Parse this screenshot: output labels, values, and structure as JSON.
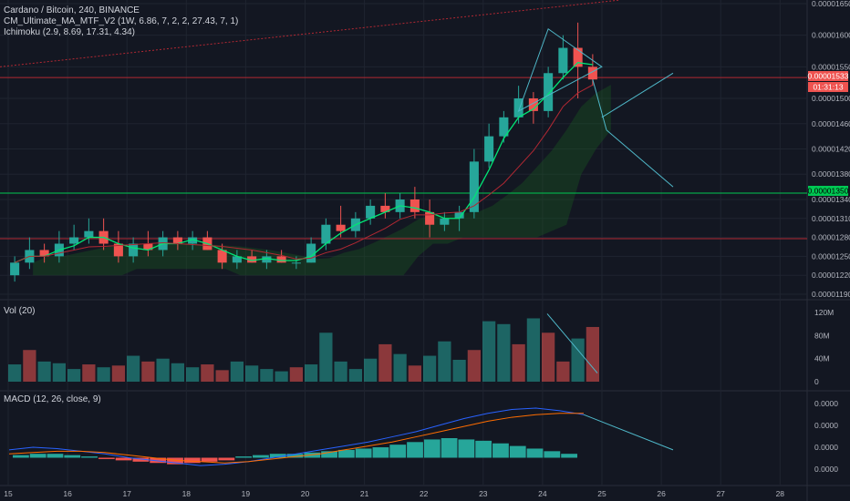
{
  "legend": {
    "main": "Cardano / Bitcoin, 240, BINANCE",
    "ma": "CM_Ultimate_MA_MTF_V2 (1W, 6.86, 7, 2, 2, 27.43, 7, 1)",
    "ichimoku": "Ichimoku (2.9, 8.69, 17.31, 4.34)",
    "vol": "Vol (20)",
    "macd": "MACD (12, 26, close, 9)"
  },
  "price_tag": {
    "price": "0.00001533",
    "countdown": "01:31:13"
  },
  "level_tag": "0.00001350",
  "colors": {
    "bg": "#131722",
    "up": "#26a69a",
    "down": "#ef5350",
    "grid": "#1f2430",
    "ma": "#00e676",
    "level": "#00c853",
    "resistance": "#b22833",
    "cloud": "#1b5e20",
    "drawing": "#4fb8c9",
    "macd": "#2962ff",
    "signal": "#ff6d00"
  },
  "chart_data": [
    {
      "type": "candlestick",
      "title": "Cardano / Bitcoin, 240, BINANCE",
      "x_ticks": [
        "15",
        "16",
        "17",
        "18",
        "19",
        "20",
        "21",
        "22",
        "23",
        "24",
        "25",
        "26",
        "27",
        "28"
      ],
      "y_ticks": [
        "0.00001650",
        "0.00001600",
        "0.00001550",
        "0.00001500",
        "0.00001460",
        "0.00001420",
        "0.00001380",
        "0.00001340",
        "0.00001310",
        "0.00001280",
        "0.00001250",
        "0.00001220",
        "0.00001190"
      ],
      "ylim": [
        1.19e-05,
        1.65e-05
      ],
      "horizontal_levels": [
        1.533e-05,
        1.35e-05,
        1.278e-05
      ],
      "candles": [
        [
          1.22e-05,
          1.25e-05,
          1.21e-05,
          1.24e-05
        ],
        [
          1.24e-05,
          1.28e-05,
          1.23e-05,
          1.26e-05
        ],
        [
          1.26e-05,
          1.27e-05,
          1.24e-05,
          1.25e-05
        ],
        [
          1.25e-05,
          1.29e-05,
          1.24e-05,
          1.27e-05
        ],
        [
          1.27e-05,
          1.3e-05,
          1.26e-05,
          1.28e-05
        ],
        [
          1.28e-05,
          1.31e-05,
          1.27e-05,
          1.29e-05
        ],
        [
          1.29e-05,
          1.31e-05,
          1.26e-05,
          1.27e-05
        ],
        [
          1.27e-05,
          1.29e-05,
          1.24e-05,
          1.25e-05
        ],
        [
          1.25e-05,
          1.28e-05,
          1.24e-05,
          1.27e-05
        ],
        [
          1.27e-05,
          1.29e-05,
          1.25e-05,
          1.26e-05
        ],
        [
          1.26e-05,
          1.29e-05,
          1.25e-05,
          1.28e-05
        ],
        [
          1.28e-05,
          1.29e-05,
          1.26e-05,
          1.27e-05
        ],
        [
          1.27e-05,
          1.29e-05,
          1.26e-05,
          1.28e-05
        ],
        [
          1.28e-05,
          1.29e-05,
          1.26e-05,
          1.26e-05
        ],
        [
          1.26e-05,
          1.27e-05,
          1.23e-05,
          1.24e-05
        ],
        [
          1.24e-05,
          1.26e-05,
          1.23e-05,
          1.25e-05
        ],
        [
          1.25e-05,
          1.26e-05,
          1.24e-05,
          1.24e-05
        ],
        [
          1.24e-05,
          1.26e-05,
          1.23e-05,
          1.25e-05
        ],
        [
          1.25e-05,
          1.26e-05,
          1.24e-05,
          1.24e-05
        ],
        [
          1.24e-05,
          1.25e-05,
          1.23e-05,
          1.24e-05
        ],
        [
          1.24e-05,
          1.28e-05,
          1.24e-05,
          1.27e-05
        ],
        [
          1.27e-05,
          1.31e-05,
          1.26e-05,
          1.3e-05
        ],
        [
          1.3e-05,
          1.33e-05,
          1.28e-05,
          1.29e-05
        ],
        [
          1.29e-05,
          1.32e-05,
          1.28e-05,
          1.31e-05
        ],
        [
          1.31e-05,
          1.34e-05,
          1.3e-05,
          1.33e-05
        ],
        [
          1.33e-05,
          1.35e-05,
          1.31e-05,
          1.32e-05
        ],
        [
          1.32e-05,
          1.35e-05,
          1.31e-05,
          1.34e-05
        ],
        [
          1.34e-05,
          1.36e-05,
          1.31e-05,
          1.32e-05
        ],
        [
          1.32e-05,
          1.34e-05,
          1.28e-05,
          1.3e-05
        ],
        [
          1.3e-05,
          1.32e-05,
          1.29e-05,
          1.31e-05
        ],
        [
          1.31e-05,
          1.33e-05,
          1.29e-05,
          1.32e-05
        ],
        [
          1.32e-05,
          1.42e-05,
          1.31e-05,
          1.4e-05
        ],
        [
          1.4e-05,
          1.46e-05,
          1.39e-05,
          1.44e-05
        ],
        [
          1.44e-05,
          1.48e-05,
          1.43e-05,
          1.47e-05
        ],
        [
          1.47e-05,
          1.52e-05,
          1.46e-05,
          1.5e-05
        ],
        [
          1.5e-05,
          1.51e-05,
          1.46e-05,
          1.48e-05
        ],
        [
          1.48e-05,
          1.55e-05,
          1.47e-05,
          1.54e-05
        ],
        [
          1.54e-05,
          1.6e-05,
          1.53e-05,
          1.58e-05
        ],
        [
          1.58e-05,
          1.62e-05,
          1.5e-05,
          1.55e-05
        ],
        [
          1.55e-05,
          1.57e-05,
          1.52e-05,
          1.53e-05
        ]
      ]
    },
    {
      "type": "bar",
      "title": "Vol (20)",
      "y_ticks": [
        "120M",
        "80M",
        "40M",
        "0"
      ],
      "ylim": [
        0,
        125
      ],
      "values": [
        30,
        55,
        35,
        32,
        22,
        30,
        25,
        28,
        45,
        35,
        40,
        32,
        25,
        30,
        20,
        35,
        28,
        22,
        18,
        25,
        30,
        85,
        35,
        22,
        40,
        65,
        48,
        28,
        45,
        70,
        38,
        55,
        105,
        100,
        65,
        110,
        85,
        35,
        75,
        95
      ],
      "colors": [
        "up",
        "down",
        "up",
        "up",
        "up",
        "down",
        "up",
        "down",
        "up",
        "down",
        "up",
        "up",
        "up",
        "down",
        "down",
        "up",
        "up",
        "up",
        "up",
        "down",
        "up",
        "up",
        "up",
        "up",
        "up",
        "down",
        "up",
        "down",
        "up",
        "up",
        "up",
        "down",
        "up",
        "up",
        "down",
        "up",
        "down",
        "down",
        "up",
        "down"
      ]
    },
    {
      "type": "line+histogram",
      "title": "MACD (12, 26, close, 9)",
      "y_ticks": [
        "0.0000",
        "0.0000",
        "0.0000",
        "0.0000"
      ],
      "histogram": [
        0.2,
        0.3,
        0.3,
        0.2,
        0.1,
        -0.1,
        -0.2,
        -0.3,
        -0.4,
        -0.5,
        -0.4,
        -0.3,
        -0.2,
        0.1,
        0.2,
        0.3,
        0.3,
        0.4,
        0.5,
        0.6,
        0.7,
        0.8,
        1.0,
        1.2,
        1.4,
        1.5,
        1.4,
        1.3,
        1.1,
        0.9,
        0.7,
        0.5,
        0.3
      ],
      "macd": [
        0.6,
        0.8,
        0.7,
        0.5,
        0.3,
        0.0,
        -0.2,
        -0.4,
        -0.6,
        -0.5,
        -0.3,
        0.0,
        0.3,
        0.6,
        0.9,
        1.2,
        1.6,
        2.0,
        2.5,
        3.0,
        3.4,
        3.7,
        3.8,
        3.6,
        3.3
      ],
      "signal": [
        0.3,
        0.4,
        0.5,
        0.5,
        0.4,
        0.2,
        0.0,
        -0.2,
        -0.3,
        -0.4,
        -0.3,
        -0.1,
        0.1,
        0.3,
        0.6,
        0.9,
        1.2,
        1.6,
        2.0,
        2.4,
        2.8,
        3.1,
        3.3,
        3.4,
        3.4
      ]
    }
  ]
}
